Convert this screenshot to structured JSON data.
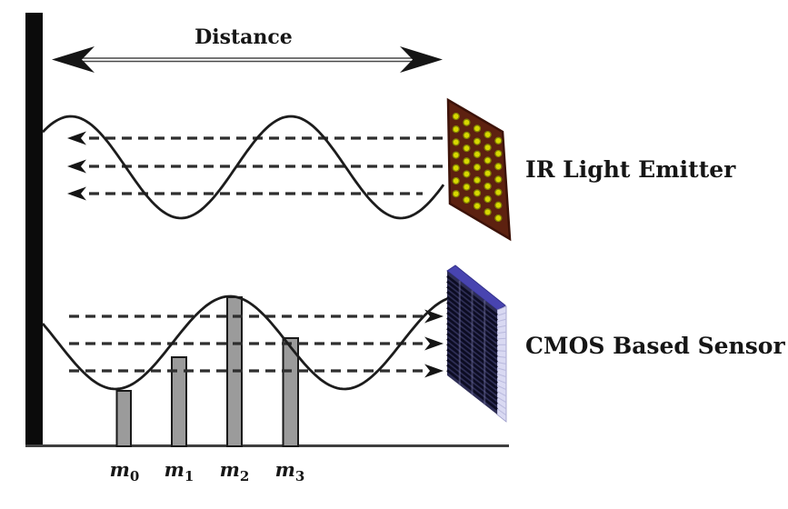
{
  "diagram": {
    "distance": {
      "label": "Distance"
    },
    "emitter": {
      "label": "IR Light Emitter"
    },
    "sensor": {
      "label": "CMOS Based Sensor"
    },
    "samples": [
      {
        "base": "m",
        "sub": "0"
      },
      {
        "base": "m",
        "sub": "1"
      },
      {
        "base": "m",
        "sub": "2"
      },
      {
        "base": "m",
        "sub": "3"
      }
    ],
    "colors": {
      "wall": "#0b0b0b",
      "line": "#2e2e2e",
      "wave": "#1c1c1c",
      "baseline": "#3f3f3f",
      "bar_fill": "#9b9b9b",
      "emitter_panel": "#5d2110",
      "led_dot": "#d8d800",
      "led_dot_stroke": "#838300",
      "sensor_front": "#2e2e55",
      "sensor_stripe": "#0c0c22",
      "sensor_top": "#4844b0",
      "sensor_side": "#d9d9f2"
    }
  }
}
